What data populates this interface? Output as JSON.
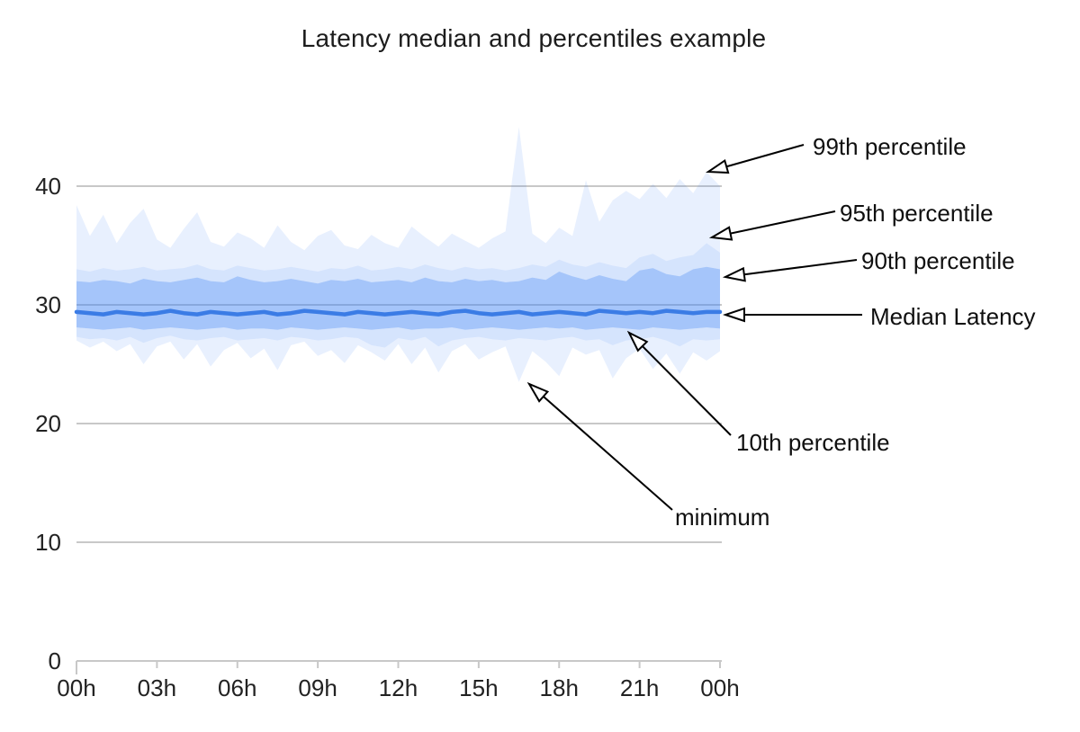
{
  "title": "Latency median and percentiles example",
  "annotations": [
    {
      "id": "p99",
      "label": "99th percentile"
    },
    {
      "id": "p95",
      "label": "95th percentile"
    },
    {
      "id": "p90",
      "label": "90th percentile"
    },
    {
      "id": "median",
      "label": "Median Latency"
    },
    {
      "id": "p10",
      "label": "10th percentile"
    },
    {
      "id": "min",
      "label": "minimum"
    }
  ],
  "chart_data": {
    "type": "area",
    "title": "Latency median and percentiles example",
    "xlabel": "",
    "ylabel": "",
    "x_unit": "hour of day",
    "grid": "horizontal",
    "legend": "none (series labeled via arrow annotations)",
    "ylim": [
      0,
      45
    ],
    "x_tick_hours": [
      0,
      3,
      6,
      9,
      12,
      15,
      18,
      21,
      24
    ],
    "x_tick_labels": [
      "00h",
      "03h",
      "06h",
      "09h",
      "12h",
      "15h",
      "18h",
      "21h",
      "00h"
    ],
    "y_ticks": [
      0,
      10,
      20,
      30,
      40
    ],
    "y_tick_labels": [
      "0",
      "10",
      "20",
      "30",
      "40"
    ],
    "x_hours": [
      0,
      0.5,
      1,
      1.5,
      2,
      2.5,
      3,
      3.5,
      4,
      4.5,
      5,
      5.5,
      6,
      6.5,
      7,
      7.5,
      8,
      8.5,
      9,
      9.5,
      10,
      10.5,
      11,
      11.5,
      12,
      12.5,
      13,
      13.5,
      14,
      14.5,
      15,
      15.5,
      16,
      16.5,
      17,
      17.5,
      18,
      18.5,
      19,
      19.5,
      20,
      20.5,
      21,
      21.5,
      22,
      22.5,
      23,
      23.5,
      24
    ],
    "series": [
      {
        "role": "p99",
        "name": "99th percentile",
        "values": [
          38.4,
          35.8,
          37.6,
          35.2,
          36.9,
          38.1,
          35.5,
          34.8,
          36.4,
          37.8,
          35.3,
          34.9,
          36.1,
          35.6,
          34.8,
          36.7,
          35.3,
          34.6,
          35.8,
          36.3,
          35.0,
          34.7,
          35.9,
          35.2,
          34.8,
          36.6,
          35.7,
          34.9,
          36.0,
          35.4,
          34.8,
          35.6,
          36.2,
          45.0,
          36.0,
          35.2,
          36.5,
          35.8,
          40.5,
          37.0,
          38.8,
          39.6,
          38.9,
          40.2,
          39.0,
          40.6,
          39.4,
          41.2,
          40.0
        ]
      },
      {
        "role": "p95",
        "name": "95th percentile",
        "values": [
          33.0,
          32.8,
          33.1,
          32.9,
          33.0,
          33.2,
          32.9,
          33.0,
          33.1,
          33.4,
          33.0,
          32.9,
          33.3,
          33.1,
          32.9,
          33.0,
          33.2,
          33.0,
          32.8,
          33.1,
          33.0,
          33.3,
          32.9,
          33.0,
          33.2,
          33.0,
          33.4,
          33.1,
          32.9,
          33.2,
          33.0,
          33.1,
          32.9,
          33.1,
          33.4,
          33.2,
          33.8,
          33.4,
          33.2,
          33.6,
          33.3,
          33.1,
          34.0,
          34.3,
          33.7,
          34.0,
          34.2,
          35.2,
          34.4
        ]
      },
      {
        "role": "p90",
        "name": "90th percentile",
        "values": [
          32.0,
          31.9,
          32.1,
          32.0,
          31.8,
          32.2,
          32.0,
          31.9,
          32.1,
          32.3,
          32.0,
          31.9,
          32.4,
          32.1,
          31.9,
          32.0,
          32.2,
          32.0,
          31.8,
          32.1,
          32.0,
          32.2,
          31.9,
          32.0,
          32.1,
          31.9,
          32.3,
          32.0,
          31.9,
          32.2,
          32.0,
          32.1,
          31.9,
          32.0,
          32.3,
          32.1,
          32.8,
          32.4,
          32.1,
          32.5,
          32.2,
          32.0,
          32.9,
          33.1,
          32.6,
          32.4,
          33.0,
          33.2,
          33.0
        ]
      },
      {
        "role": "median",
        "name": "Median Latency",
        "values": [
          29.4,
          29.3,
          29.2,
          29.4,
          29.3,
          29.2,
          29.3,
          29.5,
          29.3,
          29.2,
          29.4,
          29.3,
          29.2,
          29.3,
          29.4,
          29.2,
          29.3,
          29.5,
          29.4,
          29.3,
          29.2,
          29.4,
          29.3,
          29.2,
          29.3,
          29.4,
          29.3,
          29.2,
          29.4,
          29.5,
          29.3,
          29.2,
          29.3,
          29.4,
          29.2,
          29.3,
          29.4,
          29.3,
          29.2,
          29.5,
          29.4,
          29.3,
          29.4,
          29.3,
          29.5,
          29.4,
          29.3,
          29.4,
          29.4
        ]
      },
      {
        "role": "p10",
        "name": "10th percentile",
        "values": [
          28.1,
          28.0,
          27.9,
          28.0,
          28.1,
          27.9,
          28.0,
          28.1,
          28.0,
          27.9,
          28.0,
          28.1,
          27.9,
          28.0,
          28.0,
          27.9,
          28.1,
          28.0,
          27.9,
          28.0,
          28.1,
          28.0,
          27.9,
          28.0,
          28.1,
          27.9,
          28.0,
          28.0,
          28.1,
          27.9,
          28.0,
          28.1,
          28.0,
          27.9,
          28.0,
          28.1,
          28.0,
          28.1,
          27.9,
          28.0,
          28.1,
          28.0,
          27.9,
          28.1,
          28.0,
          27.9,
          28.0,
          28.1,
          28.0
        ]
      },
      {
        "role": "p5",
        "name": "lower light-band edge (unlabeled, ~5th percentile)",
        "values": [
          27.3,
          27.1,
          27.2,
          27.0,
          27.3,
          26.8,
          27.2,
          27.4,
          27.1,
          27.0,
          27.2,
          27.3,
          27.0,
          27.1,
          27.2,
          27.0,
          27.3,
          27.2,
          27.0,
          27.1,
          27.3,
          27.2,
          26.6,
          26.4,
          27.2,
          27.0,
          27.3,
          26.5,
          27.0,
          27.2,
          27.3,
          27.1,
          27.0,
          27.2,
          27.1,
          27.0,
          27.2,
          27.3,
          27.0,
          27.1,
          26.6,
          27.0,
          27.1,
          27.3,
          27.0,
          26.5,
          27.1,
          27.0,
          27.1
        ]
      },
      {
        "role": "min",
        "name": "minimum",
        "values": [
          27.0,
          26.4,
          26.9,
          26.1,
          26.7,
          25.0,
          26.5,
          26.9,
          25.4,
          26.7,
          24.8,
          26.2,
          26.8,
          25.5,
          26.3,
          24.5,
          26.6,
          26.9,
          25.7,
          26.2,
          25.1,
          26.6,
          26.0,
          25.3,
          26.7,
          25.0,
          26.4,
          24.3,
          26.1,
          26.7,
          25.4,
          26.0,
          26.5,
          23.5,
          26.1,
          25.2,
          24.0,
          26.4,
          25.8,
          26.2,
          23.8,
          25.5,
          26.3,
          24.6,
          25.9,
          24.2,
          26.0,
          25.3,
          26.1
        ]
      }
    ],
    "colors": {
      "series_base": "#4285F4",
      "median_line": "#3B7CE5",
      "band_inner_10_90": "rgba(66,133,244,0.48)",
      "band_mid_5_95": "rgba(66,133,244,0.22)",
      "band_outer_min_99": "rgba(66,133,244,0.12)",
      "gridline": "#C8C8C8",
      "axis_text": "#222222",
      "annotation_text": "#0F0F0F",
      "arrow": "#000000",
      "background": "#FFFFFF"
    }
  }
}
